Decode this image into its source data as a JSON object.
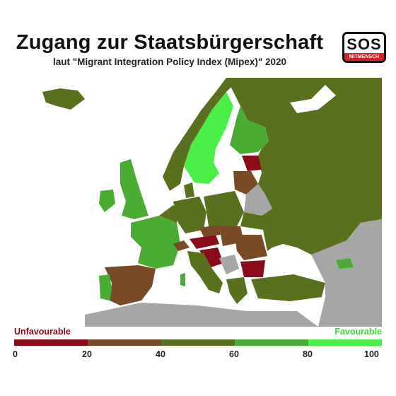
{
  "header": {
    "title": "Zugang zur Staatsbürgerschaft",
    "subtitle": "laut \"Migrant Integration Policy Index (Mipex)\" 2020"
  },
  "logo": {
    "main": "SOS",
    "sub": "MITMENSCH",
    "accent": "#d61f26"
  },
  "legend": {
    "low_label": "Unfavourable",
    "high_label": "Favourable",
    "ticks": [
      "0",
      "20",
      "40",
      "60",
      "80",
      "100"
    ],
    "colors": [
      "#8b0a1a",
      "#7a4a26",
      "#59701f",
      "#4aac32",
      "#49ee46"
    ],
    "low_color": "#8b0a1a",
    "high_color": "#3fd63c"
  },
  "map": {
    "sea_color": "#ffffff",
    "no_data_color": "#a6a6a6"
  }
}
